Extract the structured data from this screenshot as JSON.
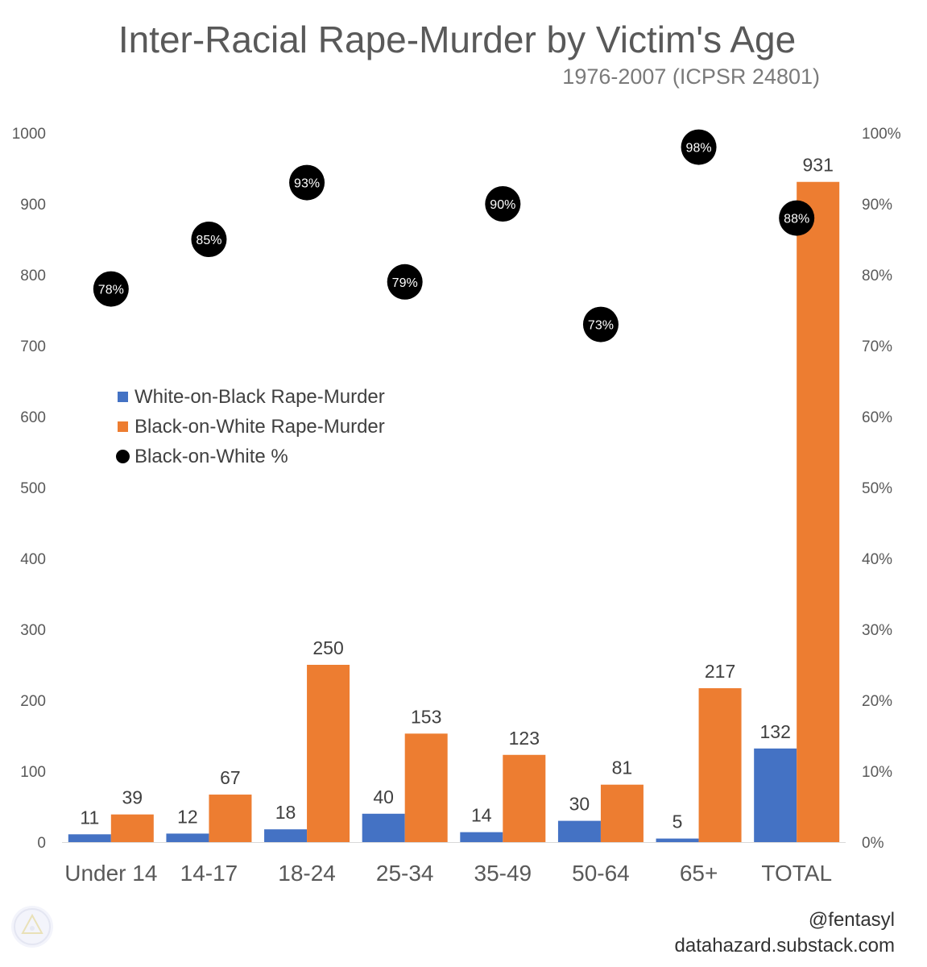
{
  "chart_data": {
    "type": "bar",
    "title": "Inter-Racial Rape-Murder by Victim's Age",
    "subtitle": "1976-2007 (ICPSR 24801)",
    "categories": [
      "Under 14",
      "14-17",
      "18-24",
      "25-34",
      "35-49",
      "50-64",
      "65+",
      "TOTAL"
    ],
    "series": [
      {
        "name": "White-on-Black Rape-Murder",
        "kind": "bar",
        "axis": "left",
        "color": "#4472C4",
        "values": [
          11,
          12,
          18,
          40,
          14,
          30,
          5,
          132
        ]
      },
      {
        "name": "Black-on-White Rape-Murder",
        "kind": "bar",
        "axis": "left",
        "color": "#ED7D31",
        "values": [
          39,
          67,
          250,
          153,
          123,
          81,
          217,
          931
        ]
      },
      {
        "name": "Black-on-White %",
        "kind": "scatter",
        "axis": "right",
        "color": "#000000",
        "values": [
          78,
          85,
          93,
          79,
          90,
          73,
          98,
          88
        ],
        "labels": [
          "78%",
          "85%",
          "93%",
          "79%",
          "90%",
          "73%",
          "98%",
          "88%"
        ]
      }
    ],
    "ylim": [
      0,
      1000
    ],
    "y_ticks": [
      "0",
      "100",
      "200",
      "300",
      "400",
      "500",
      "600",
      "700",
      "800",
      "900",
      "1000"
    ],
    "y2lim": [
      0,
      100
    ],
    "y2_ticks": [
      "0%",
      "10%",
      "20%",
      "30%",
      "40%",
      "50%",
      "60%",
      "70%",
      "80%",
      "90%",
      "100%"
    ],
    "grid": false,
    "legend_position": "left-middle"
  },
  "legend": {
    "item1": "White-on-Black Rape-Murder",
    "item2": "Black-on-White Rape-Murder",
    "item3": "Black-on-White %"
  },
  "credits": {
    "handle": "@fentasyl",
    "site": "datahazard.substack.com"
  },
  "colors": {
    "blue": "#4472C4",
    "orange": "#ED7D31",
    "dot": "#000000",
    "text": "#595959"
  }
}
